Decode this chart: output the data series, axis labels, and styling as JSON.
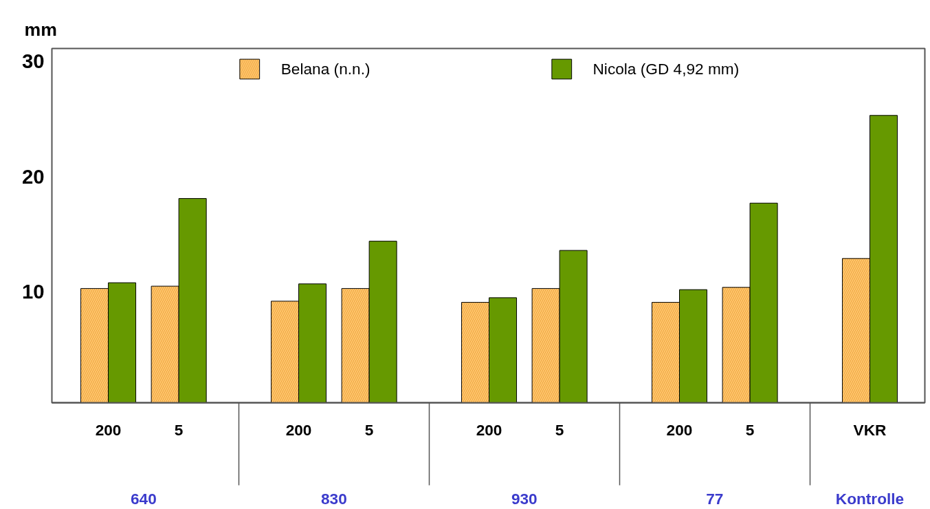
{
  "chart_data": {
    "type": "bar",
    "ylabel": "mm",
    "categories": [
      "200",
      "5",
      "200",
      "5",
      "200",
      "5",
      "200",
      "5",
      "VKR"
    ],
    "series": [
      {
        "name": "Belana (n.n.)",
        "color": "#ffc66e",
        "values": [
          10.3,
          10.5,
          9.2,
          10.3,
          9.1,
          10.3,
          9.1,
          10.4,
          12.9
        ]
      },
      {
        "name": "Nicola (GD 4,92 mm)",
        "color": "#669900",
        "values": [
          10.8,
          18.1,
          10.7,
          14.4,
          9.5,
          13.6,
          10.2,
          17.7,
          25.3
        ]
      }
    ],
    "annotations": [
      "640",
      "830",
      "930",
      "77",
      "Kontrolle"
    ],
    "ylim": [
      0.4,
      31.1
    ],
    "yticks": [
      10,
      20,
      30
    ],
    "grid": false,
    "legend": "top"
  }
}
